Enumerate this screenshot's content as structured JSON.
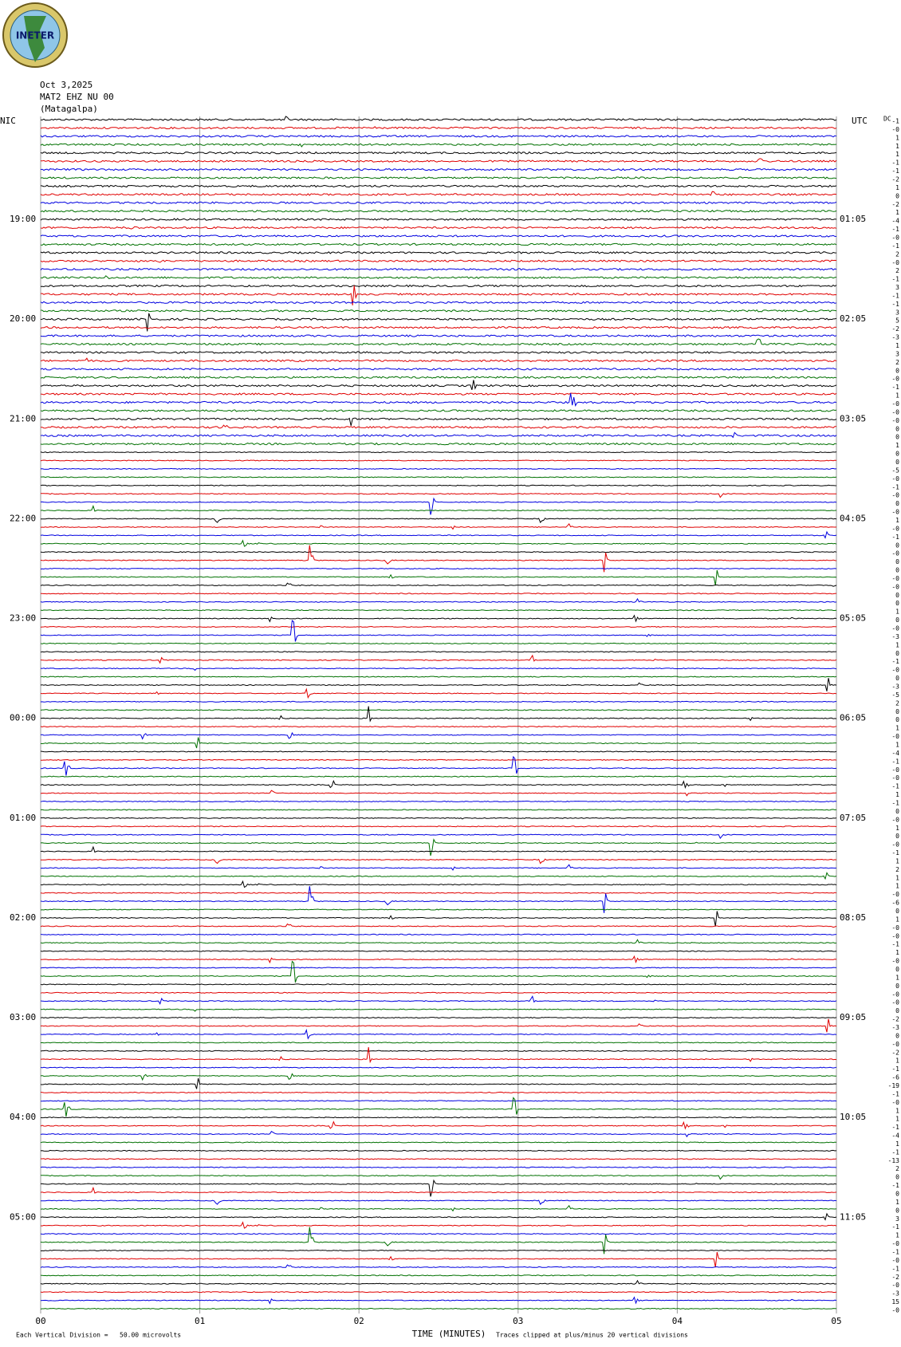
{
  "chart_data": {
    "type": "helicorder",
    "logo_text": "INETER",
    "date": "Oct 3,2025",
    "station": "MAT2 EHZ NU 00",
    "location": "(Matagalpa)",
    "left_zone": "NIC",
    "right_zone": "UTC",
    "dc_label": "DC",
    "left_time_labels": [
      "19:00",
      "20:00",
      "21:00",
      "22:00",
      "23:00",
      "00:00",
      "01:00",
      "02:00",
      "03:00",
      "04:00",
      "05:00"
    ],
    "right_time_labels": [
      "01:05",
      "02:05",
      "03:05",
      "04:05",
      "05:05",
      "06:05",
      "07:05",
      "08:05",
      "09:05",
      "10:05",
      "11:05"
    ],
    "trace_colors": [
      "#000000",
      "#e00000",
      "#0000e0",
      "#007000"
    ],
    "dc_offsets": [
      "-1",
      "-0",
      "1",
      "1",
      "1",
      "-1",
      "-1",
      "-2",
      "1",
      "0",
      "-2",
      "1",
      "-4",
      "-1",
      "-0",
      "-1",
      "2",
      "-0",
      "2",
      "-1",
      "3",
      "-1",
      "-1",
      "3",
      "5",
      "-2",
      "-3",
      "1",
      "3",
      "2",
      "0",
      "-0",
      "-1",
      "1",
      "-0",
      "-0",
      "-0",
      "0",
      "0",
      "1",
      "0",
      "0",
      "-5",
      "-0",
      "-1",
      "-0",
      "0",
      "-0",
      "1",
      "-0",
      "-1",
      "0",
      "-0",
      "0",
      "0",
      "-0",
      "-0",
      "0",
      "0",
      "1",
      "0",
      "-0",
      "-3",
      "1",
      "0",
      "-1",
      "-0",
      "0",
      "-3",
      "-5",
      "2",
      "0",
      "0",
      "1",
      "-0",
      "1",
      "-4",
      "-1",
      "-0",
      "-0",
      "-1",
      "1",
      "-1",
      "0",
      "-0",
      "1",
      "0",
      "-0",
      "-1",
      "1",
      "2",
      "1",
      "1",
      "-0",
      "-6",
      "0",
      "1",
      "-0",
      "-0",
      "-1",
      "1",
      "-0",
      "0",
      "1",
      "0",
      "-0",
      "-0",
      "0",
      "-2",
      "-3",
      "0",
      "-0",
      "-2",
      "1",
      "-1",
      "-6",
      "-19",
      "-1",
      "-0",
      "1",
      "1",
      "-1",
      "-4",
      "1",
      "-1",
      "-13",
      "2",
      "0",
      "-1",
      "0",
      "1",
      "0",
      "3",
      "-1",
      "1",
      "-0",
      "-1",
      "-0",
      "-1",
      "-2",
      "-0",
      "-3",
      "15",
      "-0"
    ],
    "x_label": "TIME (MINUTES)",
    "xlim": [
      0,
      5
    ],
    "xticks": [
      {
        "value": 0,
        "label": "00"
      },
      {
        "value": 1,
        "label": "01"
      },
      {
        "value": 2,
        "label": "02"
      },
      {
        "value": 3,
        "label": "03"
      },
      {
        "value": 4,
        "label": "04"
      },
      {
        "value": 5,
        "label": "05"
      }
    ],
    "scale_note": "Each Vertical Division =   50.00 microvolts",
    "clip_note": "Traces clipped at plus/minus 20 vertical divisions"
  }
}
